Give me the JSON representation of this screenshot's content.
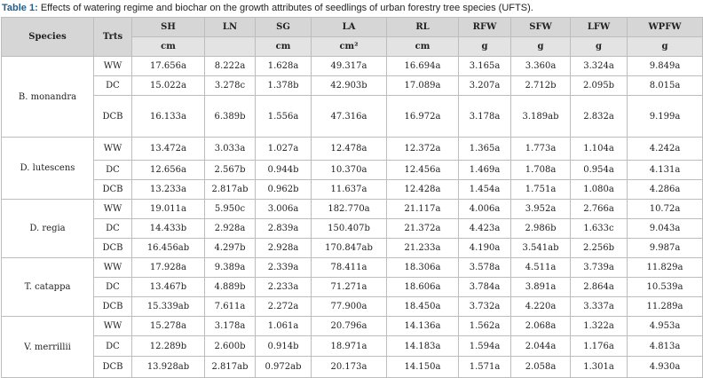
{
  "caption": {
    "label": "Table 1:",
    "text": "Effects of watering regime and biochar on the growth attributes of seedlings of urban forestry tree species (UFTS)."
  },
  "table": {
    "header": [
      "Species",
      "Trts",
      "SH",
      "LN",
      "SG",
      "LA",
      "RL",
      "RFW",
      "SFW",
      "LFW",
      "WPFW"
    ],
    "units": {
      "SH": "cm",
      "SG": "cm",
      "LA": "cm²",
      "RL": "cm",
      "RFW": "g",
      "SFW": "g",
      "LFW": "g",
      "WPFW": "g"
    },
    "groups": [
      {
        "species": "B. monandra",
        "rows": [
          {
            "trt": "WW",
            "values": [
              "17.656a",
              "8.222a",
              "1.628a",
              "49.317a",
              "16.694a",
              "3.165a",
              "3.360a",
              "3.324a",
              "9.849a"
            ]
          },
          {
            "trt": "DC",
            "values": [
              "15.022a",
              "3.278c",
              "1.378b",
              "42.903b",
              "17.089a",
              "3.207a",
              "2.712b",
              "2.095b",
              "8.015a"
            ]
          },
          {
            "trt": "DCB",
            "values": [
              "16.133a",
              "6.389b",
              "1.556a",
              "47.316a",
              "16.972a",
              "3.178a",
              "3.189ab",
              "2.832a",
              "9.199a"
            ]
          }
        ]
      },
      {
        "species": "D. lutescens",
        "rows": [
          {
            "trt": "WW",
            "values": [
              "13.472a",
              "3.033a",
              "1.027a",
              "12.478a",
              "12.372a",
              "1.365a",
              "1.773a",
              "1.104a",
              "4.242a"
            ]
          },
          {
            "trt": "DC",
            "values": [
              "12.656a",
              "2.567b",
              "0.944b",
              "10.370a",
              "12.456a",
              "1.469a",
              "1.708a",
              "0.954a",
              "4.131a"
            ]
          },
          {
            "trt": "DCB",
            "values": [
              "13.233a",
              "2.817ab",
              "0.962b",
              "11.637a",
              "12.428a",
              "1.454a",
              "1.751a",
              "1.080a",
              "4.286a"
            ]
          }
        ]
      },
      {
        "species": "D. regia",
        "rows": [
          {
            "trt": "WW",
            "values": [
              "19.011a",
              "5.950c",
              "3.006a",
              "182.770a",
              "21.117a",
              "4.006a",
              "3.952a",
              "2.766a",
              "10.72a"
            ]
          },
          {
            "trt": "DC",
            "values": [
              "14.433b",
              "2.928a",
              "2.839a",
              "150.407b",
              "21.372a",
              "4.423a",
              "2.986b",
              "1.633c",
              "9.043a"
            ]
          },
          {
            "trt": "DCB",
            "values": [
              "16.456ab",
              "4.297b",
              "2.928a",
              "170.847ab",
              "21.233a",
              "4.190a",
              "3.541ab",
              "2.256b",
              "9.987a"
            ]
          }
        ]
      },
      {
        "species": "T. catappa",
        "rows": [
          {
            "trt": "WW",
            "values": [
              "17.928a",
              "9.389a",
              "2.339a",
              "78.411a",
              "18.306a",
              "3.578a",
              "4.511a",
              "3.739a",
              "11.829a"
            ]
          },
          {
            "trt": "DC",
            "values": [
              "13.467b",
              "4.889b",
              "2.233a",
              "71.271a",
              "18.606a",
              "3.784a",
              "3.891a",
              "2.864a",
              "10.539a"
            ]
          },
          {
            "trt": "DCB",
            "values": [
              "15.339ab",
              "7.611a",
              "2.272a",
              "77.900a",
              "18.450a",
              "3.732a",
              "4.220a",
              "3.337a",
              "11.289a"
            ]
          }
        ]
      },
      {
        "species": "V. merrillii",
        "rows": [
          {
            "trt": "WW",
            "values": [
              "15.278a",
              "3.178a",
              "1.061a",
              "20.796a",
              "14.136a",
              "1.562a",
              "2.068a",
              "1.322a",
              "4.953a"
            ]
          },
          {
            "trt": "DC",
            "values": [
              "12.289b",
              "2.600b",
              "0.914b",
              "18.971a",
              "14.183a",
              "1.594a",
              "2.044a",
              "1.176a",
              "4.813a"
            ]
          },
          {
            "trt": "DCB",
            "values": [
              "13.928ab",
              "2.817ab",
              "0.972ab",
              "20.173a",
              "14.150a",
              "1.571a",
              "2.058a",
              "1.301a",
              "4.930a"
            ]
          }
        ]
      }
    ]
  }
}
